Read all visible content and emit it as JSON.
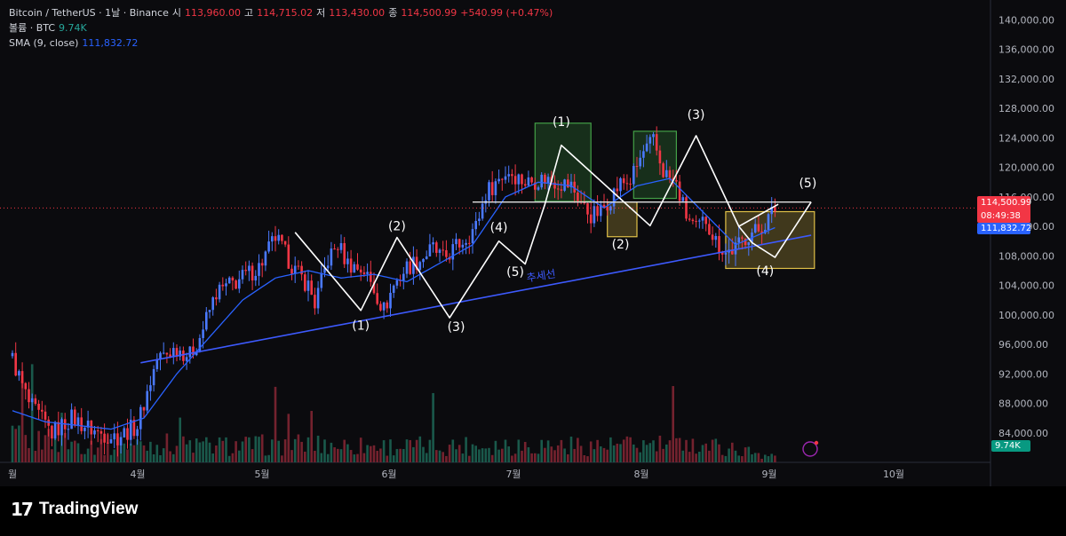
{
  "header": {
    "symbol": "Bitcoin / TetherUS · 1날 · Binance",
    "open_label": "시",
    "open": "113,960.00",
    "high_label": "고",
    "high": "114,715.02",
    "low_label": "저",
    "low": "113,430.00",
    "close_label": "종",
    "close": "114,500.99",
    "change": "+540.99 (+0.47%)",
    "volume_label": "볼륨 · BTC",
    "volume": "9.74K",
    "sma_label": "SMA (9, close)",
    "sma": "111,832.72"
  },
  "price_tags": {
    "last": "114,500.99",
    "countdown": "08:49:38",
    "sma": "111,832.72",
    "volume": "9.74K"
  },
  "brand": {
    "mark": "17",
    "name": "TradingView"
  },
  "colors": {
    "up": "#26a69a",
    "down": "#f23645",
    "sma": "#2962ff",
    "trend": "#3d5afe",
    "wave": "#ffffff",
    "green_box": "#2e7d32",
    "yellow_box": "#e0c048"
  },
  "chart_data": {
    "type": "candlestick",
    "x_axis": {
      "tick_labels": [
        "월",
        "4월",
        "5월",
        "6월",
        "7월",
        "8월",
        "9월",
        "10월"
      ]
    },
    "y_axis": {
      "range": [
        80000,
        141500
      ],
      "tick_values": [
        84000,
        88000,
        92000,
        96000,
        100000,
        104000,
        108000,
        112000,
        116000,
        120000,
        124000,
        128000,
        132000,
        136000,
        140000
      ],
      "tick_labels": [
        "84,000.00",
        "88,000.00",
        "92,000.00",
        "96,000.00",
        "100,000.00",
        "104,000.00",
        "108,000.00",
        "112,000.00",
        "116,000.00",
        "120,000.00",
        "124,000.00",
        "128,000.00",
        "132,000.00",
        "136,000.00",
        "140,000.00"
      ]
    },
    "price_path": [
      [
        0,
        94000
      ],
      [
        5,
        88000
      ],
      [
        12,
        84000
      ],
      [
        18,
        86000
      ],
      [
        26,
        84000
      ],
      [
        32,
        83500
      ],
      [
        38,
        85000
      ],
      [
        44,
        94000
      ],
      [
        50,
        95500
      ],
      [
        54,
        94500
      ],
      [
        57,
        97000
      ],
      [
        62,
        103000
      ],
      [
        68,
        104500
      ],
      [
        75,
        106500
      ],
      [
        80,
        110500
      ],
      [
        86,
        106000
      ],
      [
        90,
        104000
      ],
      [
        92,
        101500
      ],
      [
        96,
        107500
      ],
      [
        99,
        109500
      ],
      [
        102,
        107000
      ],
      [
        107,
        106000
      ],
      [
        110,
        103500
      ],
      [
        113,
        100700
      ],
      [
        116,
        104000
      ],
      [
        120,
        106500
      ],
      [
        124,
        107500
      ],
      [
        128,
        109000
      ],
      [
        131,
        107500
      ],
      [
        134,
        108800
      ],
      [
        138,
        110500
      ],
      [
        141,
        112000
      ],
      [
        144,
        116500
      ],
      [
        148,
        118500
      ],
      [
        151,
        119500
      ],
      [
        156,
        118000
      ],
      [
        162,
        118500
      ],
      [
        166,
        118000
      ],
      [
        170,
        117500
      ],
      [
        174,
        114500
      ],
      [
        176,
        113500
      ],
      [
        179,
        114000
      ],
      [
        182,
        116000
      ],
      [
        185,
        117800
      ],
      [
        188,
        118200
      ],
      [
        192,
        122000
      ],
      [
        195,
        123500
      ],
      [
        198,
        119500
      ],
      [
        202,
        117500
      ],
      [
        205,
        113500
      ],
      [
        208,
        111500
      ],
      [
        211,
        113000
      ],
      [
        214,
        110000
      ],
      [
        217,
        108500
      ],
      [
        220,
        109000
      ],
      [
        224,
        111000
      ],
      [
        227,
        111500
      ],
      [
        230,
        113000
      ],
      [
        232,
        114500
      ]
    ],
    "sma_path": [
      [
        0,
        87000
      ],
      [
        10,
        85500
      ],
      [
        20,
        85000
      ],
      [
        30,
        84500
      ],
      [
        40,
        86000
      ],
      [
        50,
        92000
      ],
      [
        60,
        97000
      ],
      [
        70,
        102000
      ],
      [
        80,
        105000
      ],
      [
        90,
        106000
      ],
      [
        100,
        105000
      ],
      [
        110,
        105500
      ],
      [
        120,
        104500
      ],
      [
        130,
        107000
      ],
      [
        140,
        109500
      ],
      [
        150,
        116000
      ],
      [
        160,
        118000
      ],
      [
        170,
        117500
      ],
      [
        180,
        114500
      ],
      [
        190,
        117500
      ],
      [
        200,
        118500
      ],
      [
        210,
        114000
      ],
      [
        220,
        109500
      ],
      [
        232,
        111832.72
      ]
    ],
    "volume_path": [
      [
        0,
        3.5
      ],
      [
        30,
        2.5
      ],
      [
        45,
        2.7
      ],
      [
        60,
        2.4
      ],
      [
        90,
        2.6
      ],
      [
        120,
        2.3
      ],
      [
        150,
        2.6
      ],
      [
        180,
        2.4
      ],
      [
        210,
        2.6
      ],
      [
        232,
        1.0
      ]
    ],
    "volume_scale_max": 20,
    "trend_line": {
      "label": "추세선",
      "points": [
        [
          39,
          93500
        ],
        [
          243,
          110800
        ]
      ]
    },
    "resistance_line": {
      "y": 115300,
      "x_range": [
        140,
        243
      ]
    },
    "wave_lines": [
      {
        "points": [
          [
            86,
            111200
          ],
          [
            106,
            100600
          ],
          [
            117,
            110500
          ],
          [
            133,
            99600
          ],
          [
            148,
            110000
          ],
          [
            156,
            106900
          ],
          [
            162,
            115000
          ],
          [
            167,
            123000
          ],
          [
            194,
            112100
          ],
          [
            208,
            124300
          ],
          [
            221,
            112000
          ],
          [
            233,
            115000
          ]
        ]
      },
      {
        "points": [
          [
            221,
            112000
          ],
          [
            225,
            109800
          ],
          [
            232,
            107800
          ],
          [
            243,
            115300
          ]
        ]
      }
    ],
    "wave_labels": [
      {
        "text": "(2)",
        "x": 117,
        "y": 111500
      },
      {
        "text": "(1)",
        "x": 106,
        "y": 98000
      },
      {
        "text": "(3)",
        "x": 135,
        "y": 97800
      },
      {
        "text": "(4)",
        "x": 148,
        "y": 111300
      },
      {
        "text": "(5)",
        "x": 153,
        "y": 105300
      },
      {
        "text": "(1)",
        "x": 167,
        "y": 125600
      },
      {
        "text": "(2)",
        "x": 185,
        "y": 109000
      },
      {
        "text": "(3)",
        "x": 208,
        "y": 126600
      },
      {
        "text": "(4)",
        "x": 229,
        "y": 105400
      },
      {
        "text": "(5)",
        "x": 242,
        "y": 117300
      }
    ],
    "zones": [
      {
        "color": "green",
        "x_range": [
          159,
          176
        ],
        "y_range": [
          115400,
          126000
        ]
      },
      {
        "color": "green",
        "x_range": [
          189,
          202
        ],
        "y_range": [
          115800,
          124900
        ]
      },
      {
        "color": "yellow",
        "x_range": [
          181,
          190
        ],
        "y_range": [
          110600,
          115300
        ]
      },
      {
        "color": "yellow",
        "x_range": [
          217,
          244
        ],
        "y_range": [
          106300,
          114000
        ]
      }
    ]
  }
}
